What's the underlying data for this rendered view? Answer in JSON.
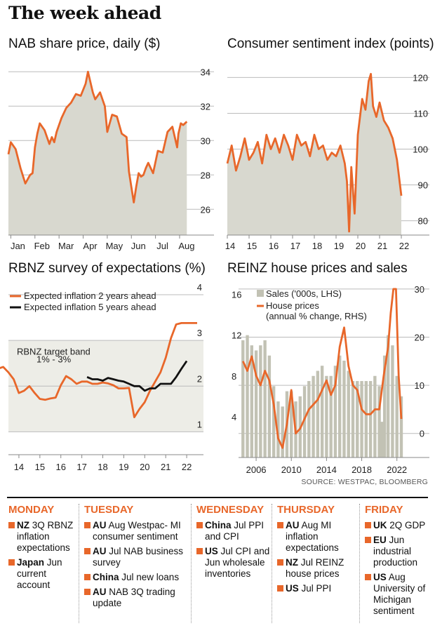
{
  "title": "The week ahead",
  "source": "SOURCE: WESTPAC, BLOOMBERG",
  "colors": {
    "accent": "#e8672a",
    "area": "#d8d8cf",
    "band": "#ededE7",
    "black": "#111111",
    "bars": "#c2c2b4"
  },
  "chart_data": [
    {
      "type": "area",
      "title": "NAB share price, daily ($)",
      "x_ticks": [
        "Jan",
        "Feb",
        "Mar",
        "Apr",
        "May",
        "Jun",
        "Jul",
        "Aug"
      ],
      "ylim": [
        24.5,
        34.5
      ],
      "y_ticks": [
        26,
        28,
        30,
        32,
        34
      ],
      "x": [
        0,
        0.1,
        0.3,
        0.5,
        0.7,
        0.9,
        1.0,
        1.1,
        1.2,
        1.3,
        1.5,
        1.7,
        1.8,
        1.9,
        2.0,
        2.2,
        2.4,
        2.6,
        2.8,
        3.0,
        3.2,
        3.3,
        3.5,
        3.6,
        3.8,
        4.0,
        4.1,
        4.3,
        4.5,
        4.7,
        4.9,
        5.0,
        5.1,
        5.2,
        5.3,
        5.4,
        5.5,
        5.6,
        5.7,
        5.8,
        6.0,
        6.2,
        6.4,
        6.6,
        6.8,
        7.0,
        7.05,
        7.15,
        7.25,
        7.4
      ],
      "values": [
        29.2,
        29.9,
        29.5,
        28.4,
        27.5,
        28.0,
        28.1,
        29.6,
        30.4,
        31.0,
        30.6,
        29.8,
        30.2,
        29.9,
        30.5,
        31.3,
        31.9,
        32.2,
        32.7,
        32.6,
        33.3,
        34.0,
        32.8,
        32.4,
        32.8,
        32.0,
        30.5,
        31.5,
        31.4,
        30.4,
        30.2,
        28.2,
        27.3,
        26.4,
        27.3,
        28.1,
        27.9,
        28.0,
        28.4,
        28.7,
        28.1,
        29.4,
        29.3,
        30.5,
        30.8,
        29.6,
        30.4,
        31.0,
        30.9,
        31.1
      ]
    },
    {
      "type": "area",
      "title": "Consumer sentiment index (points)",
      "x_ticks": [
        "14",
        "15",
        "16",
        "17",
        "18",
        "19",
        "20",
        "21",
        "22"
      ],
      "ylim": [
        76,
        124
      ],
      "y_ticks": [
        80,
        90,
        100,
        110,
        120
      ],
      "x": [
        14.0,
        14.2,
        14.4,
        14.6,
        14.8,
        15.0,
        15.2,
        15.4,
        15.6,
        15.8,
        16.0,
        16.2,
        16.4,
        16.6,
        16.8,
        17.0,
        17.2,
        17.4,
        17.6,
        17.8,
        18.0,
        18.2,
        18.4,
        18.6,
        18.8,
        19.0,
        19.2,
        19.4,
        19.5,
        19.6,
        19.7,
        19.85,
        20.0,
        20.1,
        20.2,
        20.35,
        20.5,
        20.6,
        20.7,
        20.85,
        21.0,
        21.2,
        21.4,
        21.6,
        21.8,
        22.0
      ],
      "values": [
        96,
        101,
        94,
        98,
        103,
        97,
        99,
        102,
        96,
        104,
        100,
        103,
        99,
        104,
        101,
        97,
        104,
        101,
        102,
        98,
        104,
        100,
        101,
        97,
        99,
        98,
        101,
        96,
        91,
        77,
        95,
        82,
        104,
        109,
        114,
        111,
        119,
        121,
        112,
        109,
        113,
        108,
        106,
        103,
        97,
        87
      ]
    },
    {
      "type": "line",
      "title": "RBNZ survey of expectations (%)",
      "x_ticks": [
        "14",
        "15",
        "16",
        "17",
        "18",
        "19",
        "20",
        "21",
        "22"
      ],
      "ylim": [
        0.5,
        4.0
      ],
      "y_ticks": [
        1,
        2,
        3,
        4
      ],
      "band": {
        "label": "RBNZ target band",
        "sublabel": "1% - 3%",
        "range": [
          1,
          3
        ]
      },
      "series": [
        {
          "name": "Expected inflation 2 years ahead",
          "x": [
            13.0,
            13.25,
            13.5,
            13.75,
            14.0,
            14.25,
            14.5,
            14.75,
            15.0,
            15.25,
            15.5,
            15.75,
            16.0,
            16.25,
            16.5,
            16.75,
            17.0,
            17.25,
            17.5,
            17.75,
            18.0,
            18.25,
            18.5,
            18.75,
            19.0,
            19.25,
            19.5,
            19.75,
            20.0,
            20.25,
            20.5,
            20.75,
            21.0,
            21.25,
            21.5,
            21.75,
            22.0,
            22.25,
            22.5
          ],
          "values": [
            2.38,
            2.42,
            2.3,
            2.15,
            1.85,
            1.9,
            2.0,
            1.85,
            1.72,
            1.7,
            1.73,
            1.75,
            2.02,
            2.22,
            2.15,
            2.05,
            2.1,
            2.1,
            2.05,
            2.05,
            2.08,
            2.06,
            2.02,
            1.95,
            1.95,
            1.96,
            1.32,
            1.5,
            1.65,
            1.9,
            2.1,
            2.3,
            2.62,
            3.05,
            3.35,
            3.38,
            3.38,
            3.38,
            3.38
          ]
        },
        {
          "name": "Expected inflation 5 years ahead",
          "x": [
            17.25,
            17.5,
            17.75,
            18.0,
            18.25,
            18.5,
            18.75,
            19.0,
            19.25,
            19.5,
            19.75,
            20.0,
            20.25,
            20.5,
            20.75,
            21.0,
            21.25,
            21.5,
            21.75,
            22.0
          ],
          "values": [
            2.2,
            2.15,
            2.15,
            2.12,
            2.18,
            2.15,
            2.12,
            2.1,
            2.05,
            2.0,
            2.0,
            1.9,
            1.95,
            1.95,
            2.05,
            2.05,
            2.05,
            2.2,
            2.38,
            2.55
          ]
        }
      ]
    },
    {
      "type": "bar+line",
      "title": "REINZ house prices and sales",
      "x_ticks": [
        "2006",
        "2010",
        "2014",
        "2018",
        "2022"
      ],
      "ylim_left": [
        0,
        17
      ],
      "y_ticks_left": [
        4,
        8,
        12,
        16
      ],
      "ylim_right": [
        -5,
        31
      ],
      "y_ticks_right": [
        0,
        10,
        20,
        30
      ],
      "series": [
        {
          "name": "Sales ('000s, LHS)",
          "x": [
            2004.5,
            2005.0,
            2005.5,
            2006.0,
            2006.5,
            2007.0,
            2007.5,
            2008.0,
            2008.5,
            2009.0,
            2009.5,
            2010.0,
            2010.5,
            2011.0,
            2011.5,
            2012.0,
            2012.5,
            2013.0,
            2013.5,
            2014.0,
            2014.5,
            2015.0,
            2015.5,
            2016.0,
            2016.5,
            2017.0,
            2017.5,
            2018.0,
            2018.5,
            2019.0,
            2019.5,
            2020.0,
            2020.3,
            2020.6,
            2021.0,
            2021.5,
            2022.0,
            2022.5
          ],
          "values": [
            11.5,
            12.0,
            11.0,
            10.5,
            11.0,
            11.5,
            10.0,
            7.0,
            5.5,
            5.0,
            6.5,
            6.5,
            5.5,
            6.0,
            7.0,
            7.5,
            8.0,
            8.5,
            9.0,
            8.0,
            8.0,
            9.0,
            10.0,
            9.5,
            8.5,
            7.5,
            7.5,
            7.5,
            7.5,
            7.5,
            8.0,
            7.0,
            3.5,
            10.0,
            12.0,
            11.0,
            8.0,
            6.0
          ]
        },
        {
          "name": "House prices",
          "sublabel": "(annual % change, RHS)",
          "x": [
            2004.5,
            2005.0,
            2005.5,
            2006.0,
            2006.5,
            2007.0,
            2007.5,
            2008.0,
            2008.5,
            2009.0,
            2009.5,
            2010.0,
            2010.5,
            2011.0,
            2011.5,
            2012.0,
            2012.5,
            2013.0,
            2013.5,
            2014.0,
            2014.5,
            2015.0,
            2015.5,
            2016.0,
            2016.5,
            2017.0,
            2017.5,
            2018.0,
            2018.5,
            2019.0,
            2019.5,
            2020.0,
            2020.5,
            2021.0,
            2021.3,
            2021.6,
            2021.9,
            2022.2,
            2022.5
          ],
          "values": [
            15,
            13,
            16,
            12,
            10,
            13,
            11,
            6,
            -1,
            -3,
            2,
            9,
            0,
            1,
            3,
            5,
            6,
            7,
            9,
            11,
            8,
            10,
            18,
            22,
            14,
            10,
            9,
            5,
            4,
            4,
            5,
            5,
            12,
            18,
            25,
            30,
            30,
            12,
            3
          ]
        }
      ]
    }
  ],
  "calendar": [
    {
      "day": "MONDAY",
      "events": [
        {
          "country": "NZ",
          "text": "3Q RBNZ inflation expectations"
        },
        {
          "country": "Japan",
          "text": "Jun current account"
        }
      ]
    },
    {
      "day": "TUESDAY",
      "events": [
        {
          "country": "AU",
          "text": "Aug Westpac- MI consumer sentiment"
        },
        {
          "country": "AU",
          "text": "Jul NAB business survey"
        },
        {
          "country": "China",
          "text": "Jul new loans"
        },
        {
          "country": "AU",
          "text": "NAB 3Q trading update"
        }
      ]
    },
    {
      "day": "WEDNESDAY",
      "events": [
        {
          "country": "China",
          "text": "Jul PPI and CPI"
        },
        {
          "country": "US",
          "text": "Jul CPI and Jun wholesale inventories"
        }
      ]
    },
    {
      "day": "THURSDAY",
      "events": [
        {
          "country": "AU",
          "text": "Aug MI inflation expectations"
        },
        {
          "country": "NZ",
          "text": "Jul REINZ house prices"
        },
        {
          "country": "US",
          "text": "Jul PPI"
        }
      ]
    },
    {
      "day": "FRIDAY",
      "events": [
        {
          "country": "UK",
          "text": "2Q GDP"
        },
        {
          "country": "EU",
          "text": "Jun industrial production"
        },
        {
          "country": "US",
          "text": "Aug University of Michigan sentiment"
        }
      ]
    }
  ]
}
